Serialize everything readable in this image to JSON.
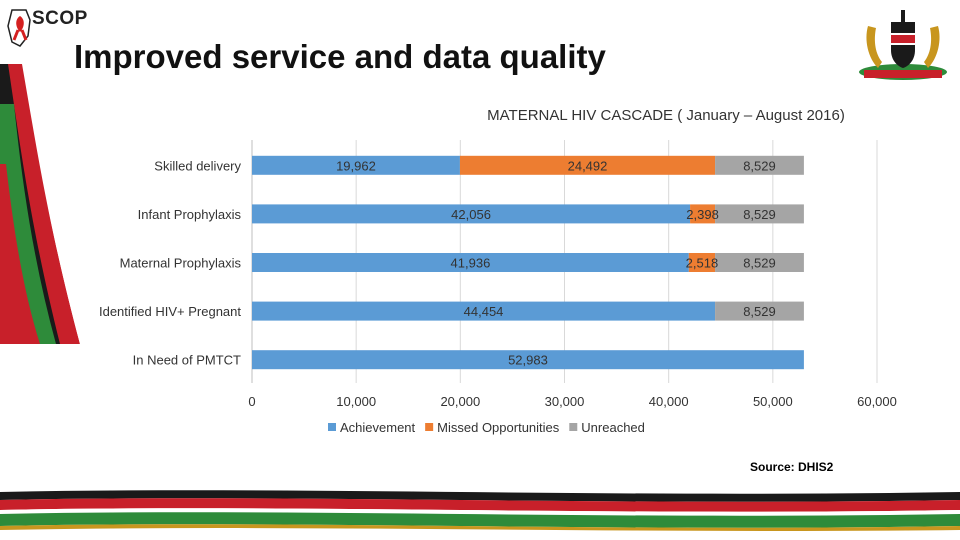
{
  "header": {
    "logo_text": "SCOP",
    "title": "Improved service and data quality"
  },
  "colors": {
    "achievement": "#5B9BD5",
    "missed": "#ED7D31",
    "unreached": "#A5A5A5",
    "grid": "#D9D9D9"
  },
  "chart_data": {
    "type": "bar",
    "orientation": "horizontal",
    "stacked": true,
    "title": "MATERNAL HIV CASCADE ( January – August 2016)",
    "categories": [
      "Skilled delivery",
      "Infant Prophylaxis",
      "Maternal Prophylaxis",
      "Identified HIV+ Pregnant",
      "In Need of PMTCT"
    ],
    "series": [
      {
        "name": "Achievement",
        "values": [
          19962,
          42056,
          41936,
          44454,
          52983
        ],
        "labels": [
          "19,962",
          "42,056",
          "41,936",
          "44,454",
          "52,983"
        ]
      },
      {
        "name": "Missed Opportunities",
        "values": [
          24492,
          2398,
          2518,
          null,
          null
        ],
        "labels": [
          "24,492",
          "2,398",
          "2,518",
          null,
          null
        ]
      },
      {
        "name": "Unreached",
        "values": [
          8529,
          8529,
          8529,
          8529,
          null
        ],
        "labels": [
          "8,529",
          "8,529",
          "8,529",
          "8,529",
          null
        ]
      }
    ],
    "xlim": [
      0,
      60000
    ],
    "xticks": [
      0,
      10000,
      20000,
      30000,
      40000,
      50000,
      60000
    ],
    "xtick_labels": [
      "0",
      "10,000",
      "20,000",
      "30,000",
      "40,000",
      "50,000",
      "60,000"
    ],
    "grid": true,
    "legend_position": "bottom"
  },
  "source": "Source: DHIS2"
}
